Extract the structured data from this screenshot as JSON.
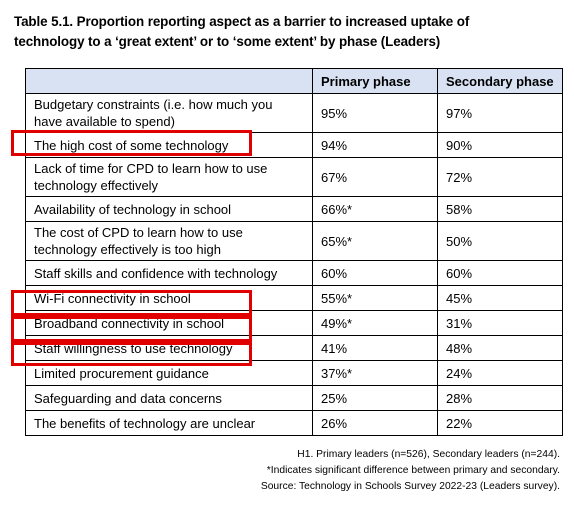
{
  "caption": {
    "line1": "Table 5.1. Proportion reporting aspect as a barrier to increased uptake of",
    "line2": "technology to a ‘great extent’ or to ‘some extent’ by phase (Leaders)"
  },
  "table": {
    "headers": [
      "",
      "Primary phase",
      "Secondary phase"
    ],
    "rows": [
      {
        "label_line1": "Budgetary constraints (i.e. how much you",
        "label_line2": "have available to spend)",
        "primary": "95%",
        "secondary": "97%"
      },
      {
        "label_line1": "The high cost of some technology",
        "label_line2": "",
        "primary": "94%",
        "secondary": "90%"
      },
      {
        "label_line1": "Lack of time for CPD to learn how to use",
        "label_line2": "technology effectively",
        "primary": "67%",
        "secondary": "72%"
      },
      {
        "label_line1": "Availability of technology in school",
        "label_line2": "",
        "primary": "66%*",
        "secondary": "58%"
      },
      {
        "label_line1": "The cost of CPD to learn how to use",
        "label_line2": "technology effectively is too high",
        "primary": "65%*",
        "secondary": "50%"
      },
      {
        "label_line1": "Staff skills and confidence with technology",
        "label_line2": "",
        "primary": "60%",
        "secondary": "60%"
      },
      {
        "label_line1": "Wi-Fi connectivity in school",
        "label_line2": "",
        "primary": "55%*",
        "secondary": "45%"
      },
      {
        "label_line1": "Broadband connectivity in school",
        "label_line2": "",
        "primary": "49%*",
        "secondary": "31%"
      },
      {
        "label_line1": "Staff willingness to use technology",
        "label_line2": "",
        "primary": "41%",
        "secondary": "48%"
      },
      {
        "label_line1": "Limited procurement guidance",
        "label_line2": "",
        "primary": "37%*",
        "secondary": "24%"
      },
      {
        "label_line1": "Safeguarding and data concerns",
        "label_line2": "",
        "primary": "25%",
        "secondary": "28%"
      },
      {
        "label_line1": "The benefits of technology are unclear",
        "label_line2": "",
        "primary": "26%",
        "secondary": "22%"
      }
    ]
  },
  "footnotes": {
    "base": "H1. Primary leaders (n=526), Secondary leaders (n=244).",
    "significance": "*Indicates significant difference between primary and secondary.",
    "source": "Source: Technology in Schools Survey 2022-23 (Leaders survey)."
  },
  "colors": {
    "header_fill": "#d9e2f3",
    "highlight_border": "#e00000"
  }
}
